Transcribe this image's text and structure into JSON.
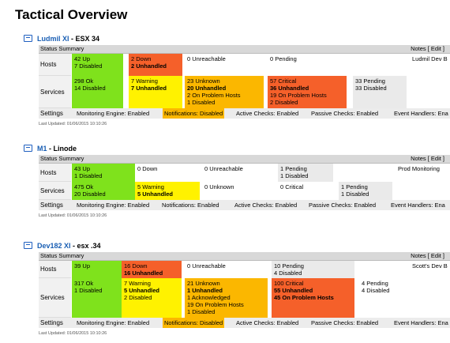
{
  "page": {
    "title": "Tactical Overview"
  },
  "servers": [
    {
      "name": "Ludmil XI",
      "sep": " - ",
      "desc": "ESX 34",
      "summary_label": "Status Summary",
      "notes_label": "Notes [ Edit ]",
      "notes_text": "Ludmil Dev B",
      "hosts_label": "Hosts",
      "hosts": {
        "up": [
          "42 Up",
          "7 Disabled"
        ],
        "down": [
          "2 Down",
          "2 Unhandled"
        ],
        "unreachable": [
          "0 Unreachable"
        ],
        "pending": [
          "0 Pending"
        ]
      },
      "services_label": "Services",
      "services": {
        "ok": [
          "298 Ok",
          "14 Disabled"
        ],
        "warning": [
          "7 Warning",
          "7 Unhandled"
        ],
        "unknown": [
          "23 Unknown",
          "20 Unhandled",
          "2 On Problem Hosts",
          "1 Disabled"
        ],
        "critical": [
          "57 Critical",
          "36 Unhandled",
          "19 On Problem Hosts",
          "2 Disabled"
        ],
        "pending": [
          "33 Pending",
          "33 Disabled"
        ]
      },
      "settings_label": "Settings",
      "settings": [
        "Monitoring Engine: Enabled",
        "Notifications: Disabled",
        "Active Checks: Enabled",
        "Passive Checks: Enabled",
        "Event Handlers: Ena"
      ],
      "updated": "Last Updated: 01/06/2015 10:10:26"
    },
    {
      "name": "M1",
      "sep": " - ",
      "desc": "Linode",
      "summary_label": "Status Summary",
      "notes_label": "Notes [ Edit ]",
      "notes_text": "Prod Monitoring",
      "hosts_label": "Hosts",
      "hosts": {
        "up": [
          "43 Up",
          "1 Disabled"
        ],
        "down": [
          "0 Down"
        ],
        "unreachable": [
          "0 Unreachable"
        ],
        "pending": [
          "1 Pending",
          "1 Disabled"
        ]
      },
      "services_label": "Services",
      "services": {
        "ok": [
          "475 Ok",
          "20 Disabled"
        ],
        "warning": [
          "5 Warning",
          "5 Unhandled"
        ],
        "unknown": [
          "0 Unknown"
        ],
        "critical": [
          "0 Critical"
        ],
        "pending": [
          "1 Pending",
          "1 Disabled"
        ]
      },
      "settings_label": "Settings",
      "settings": [
        "Monitoring Engine: Enabled",
        "Notifications: Enabled",
        "Active Checks: Enabled",
        "Passive Checks: Enabled",
        "Event Handlers: Ena"
      ],
      "updated": "Last Updated: 01/06/2015 10:10:26"
    },
    {
      "name": "Dev182 XI",
      "sep": " - ",
      "desc": "esx .34",
      "summary_label": "Status Summary",
      "notes_label": "Notes [ Edit ]",
      "notes_text": "Scott's Dev B",
      "hosts_label": "Hosts",
      "hosts": {
        "up": [
          "39 Up"
        ],
        "down": [
          "16 Down",
          "16 Unhandled"
        ],
        "unreachable": [
          "0 Unreachable"
        ],
        "pending": [
          "10 Pending",
          "4 Disabled"
        ]
      },
      "services_label": "Services",
      "services": {
        "ok": [
          "317 Ok",
          "1 Disabled"
        ],
        "warning": [
          "7 Warning",
          "5 Unhandled",
          "2 Disabled"
        ],
        "unknown": [
          "21 Unknown",
          "1 Unhandled",
          "1 Acknowledged",
          "19 On Problem Hosts",
          "1 Disabled"
        ],
        "critical": [
          "100 Critical",
          "55 Unhandled",
          "45 On Problem Hosts"
        ],
        "pending": [
          "4 Pending",
          "4 Disabled"
        ]
      },
      "settings_label": "Settings",
      "settings": [
        "Monitoring Engine: Enabled",
        "Notifications: Disabled",
        "Active Checks: Enabled",
        "Passive Checks: Enabled",
        "Event Handlers: Ena"
      ],
      "updated": "Last Updated: 01/06/2015 10:10:26"
    }
  ]
}
